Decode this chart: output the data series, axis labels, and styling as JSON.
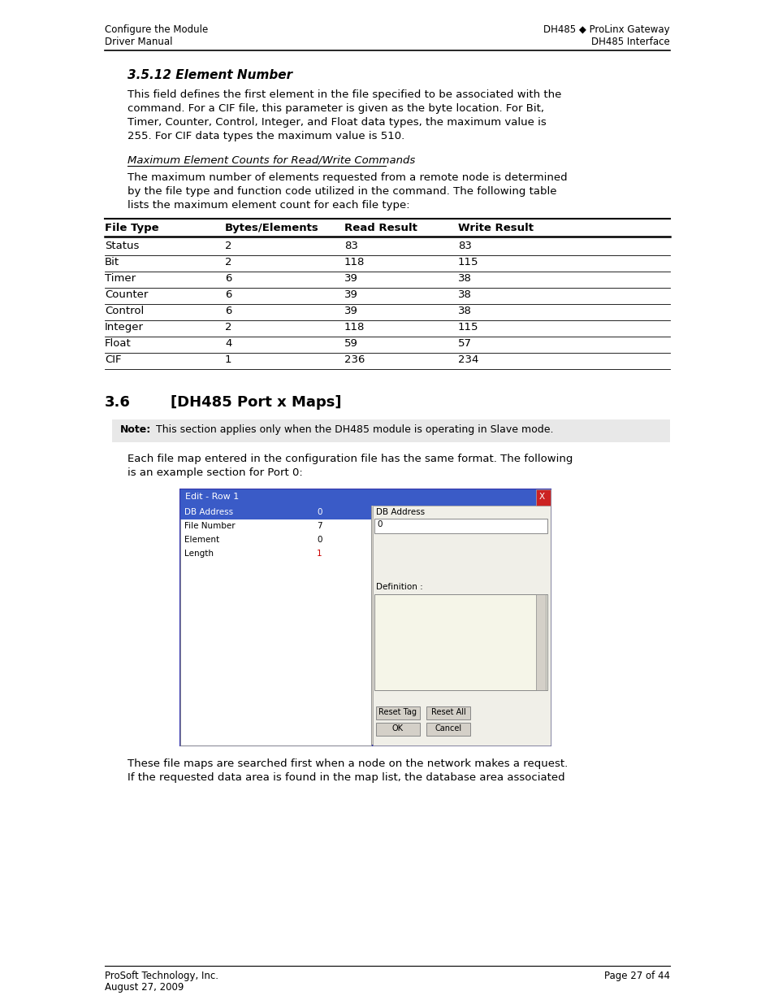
{
  "page_bg": "#ffffff",
  "header_left_line1": "Configure the Module",
  "header_left_line2": "Driver Manual",
  "header_right_line1": "DH485 ◆ ProLinx Gateway",
  "header_right_line2": "DH485 Interface",
  "section_title": "3.5.12 Element Number",
  "para1": "This field defines the first element in the file specified to be associated with the\ncommand. For a CIF file, this parameter is given as the byte location. For Bit,\nTimer, Counter, Control, Integer, and Float data types, the maximum value is\n255. For CIF data types the maximum value is 510.",
  "subsection_title": "Maximum Element Counts for Read/Write Commands",
  "para2": "The maximum number of elements requested from a remote node is determined\nby the file type and function code utilized in the command. The following table\nlists the maximum element count for each file type:",
  "table_headers": [
    "File Type",
    "Bytes/Elements",
    "Read Result",
    "Write Result"
  ],
  "table_rows": [
    [
      "Status",
      "2",
      "83",
      "83"
    ],
    [
      "Bit",
      "2",
      "118",
      "115"
    ],
    [
      "Timer",
      "6",
      "39",
      "38"
    ],
    [
      "Counter",
      "6",
      "39",
      "38"
    ],
    [
      "Control",
      "6",
      "39",
      "38"
    ],
    [
      "Integer",
      "2",
      "118",
      "115"
    ],
    [
      "Float",
      "4",
      "59",
      "57"
    ],
    [
      "CIF",
      "1",
      "236",
      "234"
    ]
  ],
  "section2_num": "3.6",
  "section2_title": "[DH485 Port x Maps]",
  "note_bold": "Note:",
  "note_text": " This section applies only when the DH485 module is operating in Slave mode.",
  "para3": "Each file map entered in the configuration file has the same format. The following\nis an example section for Port 0:",
  "para4": "These file maps are searched first when a node on the network makes a request.\nIf the requested data area is found in the map list, the database area associated",
  "footer_left_line1": "ProSoft Technology, Inc.",
  "footer_left_line2": "August 27, 2009",
  "footer_right": "Page 27 of 44",
  "dialog_title": "Edit - Row 1",
  "dialog_fields": [
    "DB Address",
    "File Number",
    "Element",
    "Length"
  ],
  "dialog_values": [
    "0",
    "7",
    "0",
    "1"
  ],
  "dialog_right_label": "DB Address",
  "dialog_def_label": "Definition :",
  "dialog_buttons_row1": [
    "Reset Tag",
    "Reset All"
  ],
  "dialog_buttons_row2": [
    "OK",
    "Cancel"
  ]
}
